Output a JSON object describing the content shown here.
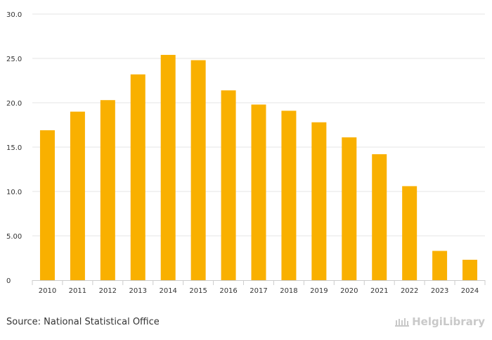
{
  "chart_data": {
    "type": "bar",
    "title": "",
    "xlabel": "",
    "ylabel": "",
    "categories": [
      "2010",
      "2011",
      "2012",
      "2013",
      "2014",
      "2015",
      "2016",
      "2017",
      "2018",
      "2019",
      "2020",
      "2021",
      "2022",
      "2023",
      "2024"
    ],
    "values": [
      16.9,
      19.0,
      20.3,
      23.2,
      25.4,
      24.8,
      21.4,
      19.8,
      19.1,
      17.8,
      16.1,
      14.2,
      10.6,
      3.3,
      2.3
    ],
    "ylim": [
      0,
      30
    ],
    "yticks": [
      0,
      5,
      10,
      15,
      20,
      25,
      30
    ],
    "ytick_labels": [
      "0",
      "5.00",
      "10.0",
      "15.0",
      "20.0",
      "25.0",
      "30.0"
    ],
    "grid": true,
    "bar_color": "#f9b000"
  },
  "footer": {
    "source": "Source: National Statistical Office",
    "logo_text": "HelgiLibrary"
  }
}
